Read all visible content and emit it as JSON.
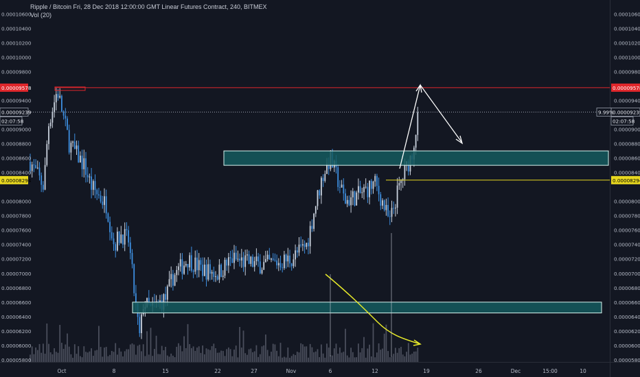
{
  "header": {
    "title": "Ripple / Bitcoin Fri, 28 Dec 2018 12:00:00 GMT Linear Futures Contract, 240, BITMEX",
    "volume_label": "Vol (20)"
  },
  "colors": {
    "background": "#131722",
    "candle_up": "#c9d1dd",
    "candle_down": "#3d8fe0",
    "volume_bar": "#5d6270",
    "red_line": "#e0272c",
    "yellow_line": "#e8d820",
    "zone_fill": "#155a5e",
    "zone_stroke": "#d7f4ef",
    "arrow": "#ffffff",
    "yellow_trend": "#e7ea2a",
    "axis_text": "#b7bcc8"
  },
  "axis": {
    "y_ticks_left": [
      "0.00010600",
      "0.00010400",
      "0.00010200",
      "0.00010000",
      "0.00009800",
      "0.00009400",
      "0.00009000",
      "0.00008800",
      "0.00008600",
      "0.00008400",
      "0.00008000",
      "0.00007800",
      "0.00007600",
      "0.00007400",
      "0.00007200",
      "0.00007000",
      "0.00006800",
      "0.00006600",
      "0.00006400",
      "0.00006200",
      "0.00006000",
      "0.00005800"
    ],
    "y_ticks_right": [
      "0.00010600",
      "0.00010400",
      "0.00010200",
      "0.00010000",
      "0.00009800",
      "0.00009400",
      "0.00009000",
      "0.00008800",
      "0.00008600",
      "0.00008400",
      "0.00008000",
      "0.00007800",
      "0.00007600",
      "0.00007400",
      "0.00007200",
      "0.00007000",
      "0.00006800",
      "0.00006600",
      "0.00006400",
      "0.00006200",
      "0.00006000",
      "0.00005800"
    ],
    "x_ticks": [
      "Oct",
      "8",
      "15",
      "22",
      "27",
      "Nov",
      "6",
      "12",
      "19",
      "26",
      "Dec",
      "15:00",
      "10"
    ]
  },
  "markers": {
    "red_price": "0.00009578",
    "current_price": "0.00009239",
    "countdown": "02:07:58",
    "yellow_price": "0.00008294",
    "change_pct": "9.99%"
  },
  "chart_data": {
    "type": "candlestick",
    "title": "Ripple / Bitcoin Fri, 28 Dec 2018 12:00:00 GMT Linear Futures Contract, 240, BITMEX",
    "interval": "240",
    "ylim": [
      5.77e-05,
      0.000107
    ],
    "price_path": [
      [
        "Sep 24",
        8.55e-05
      ],
      [
        "Sep 27",
        8.2e-05
      ],
      [
        "Sep 28",
        9.05e-05
      ],
      [
        "Sep 30",
        9.55e-05
      ],
      [
        "Oct 2",
        8.8e-05
      ],
      [
        "Oct 4",
        8.5e-05
      ],
      [
        "Oct 5",
        8.2e-05
      ],
      [
        "Oct 7",
        7.95e-05
      ],
      [
        "Oct 8",
        7.4e-05
      ],
      [
        "Oct 9",
        7.55e-05
      ],
      [
        "Oct 10",
        7.45e-05
      ],
      [
        "Oct 11",
        6.5e-05
      ],
      [
        "Oct 11 12:00",
        6.1e-05
      ],
      [
        "Oct 12",
        6.6e-05
      ],
      [
        "Oct 13",
        6.5e-05
      ],
      [
        "Oct 15",
        6.65e-05
      ],
      [
        "Oct 16",
        6.95e-05
      ],
      [
        "Oct 18",
        7.2e-05
      ],
      [
        "Oct 20",
        7.05e-05
      ],
      [
        "Oct 22",
        7e-05
      ],
      [
        "Oct 24",
        7.2e-05
      ],
      [
        "Oct 26",
        7.15e-05
      ],
      [
        "Oct 28",
        7.12e-05
      ],
      [
        "Oct 30",
        7.15e-05
      ],
      [
        "Nov 1",
        7.2e-05
      ],
      [
        "Nov 3",
        7.4e-05
      ],
      [
        "Nov 4",
        7.9e-05
      ],
      [
        "Nov 5",
        8.35e-05
      ],
      [
        "Nov 6",
        8.6e-05
      ],
      [
        "Nov 7",
        8.3e-05
      ],
      [
        "Nov 8",
        8e-05
      ],
      [
        "Nov 10",
        8.1e-05
      ],
      [
        "Nov 12",
        8.25e-05
      ],
      [
        "Nov 13",
        8e-05
      ],
      [
        "Nov 14",
        7.7e-05
      ],
      [
        "Nov 15",
        8.1e-05
      ],
      [
        "Nov 16",
        8.4e-05
      ],
      [
        "Nov 17",
        8.65e-05
      ],
      [
        "Nov 18",
        9.24e-05
      ]
    ],
    "horizontal_levels": [
      {
        "price": 9.578e-05,
        "color": "red"
      },
      {
        "price": 9.239e-05,
        "style": "dotted"
      },
      {
        "price": 8.294e-05,
        "color": "yellow"
      }
    ],
    "zones": [
      {
        "low": 8.5e-05,
        "high": 8.7e-05
      },
      {
        "low": 6.45e-05,
        "high": 6.6e-05
      }
    ],
    "volume": {
      "name": "Vol (20)"
    }
  }
}
